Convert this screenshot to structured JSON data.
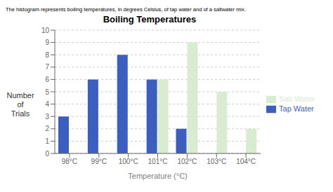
{
  "chart_data": {
    "type": "bar",
    "title": "Boiling Temperatures",
    "subtitle": "The histogram represents boiling temperatures, in degrees Celsius, of tap water and of a saltwater mix.",
    "x_label": "Temperature (°C)",
    "y_label": "Number\nof\nTrials",
    "categories": [
      "98°C",
      "99°C",
      "100°C",
      "101°C",
      "102°C",
      "103°C",
      "104°C"
    ],
    "series": [
      {
        "name": "Tap Water",
        "color": "#3b5fc0",
        "values": [
          3,
          6,
          8,
          6,
          2,
          0,
          0
        ]
      },
      {
        "name": "Salt Water",
        "color": "#d8ecd0",
        "values": [
          0,
          0,
          0,
          6,
          9,
          5,
          2
        ]
      }
    ],
    "ylim": [
      0,
      10
    ],
    "yticks": [
      0,
      1,
      2,
      3,
      4,
      5,
      6,
      7,
      8,
      9,
      10
    ],
    "grid": true,
    "legend": "right"
  }
}
